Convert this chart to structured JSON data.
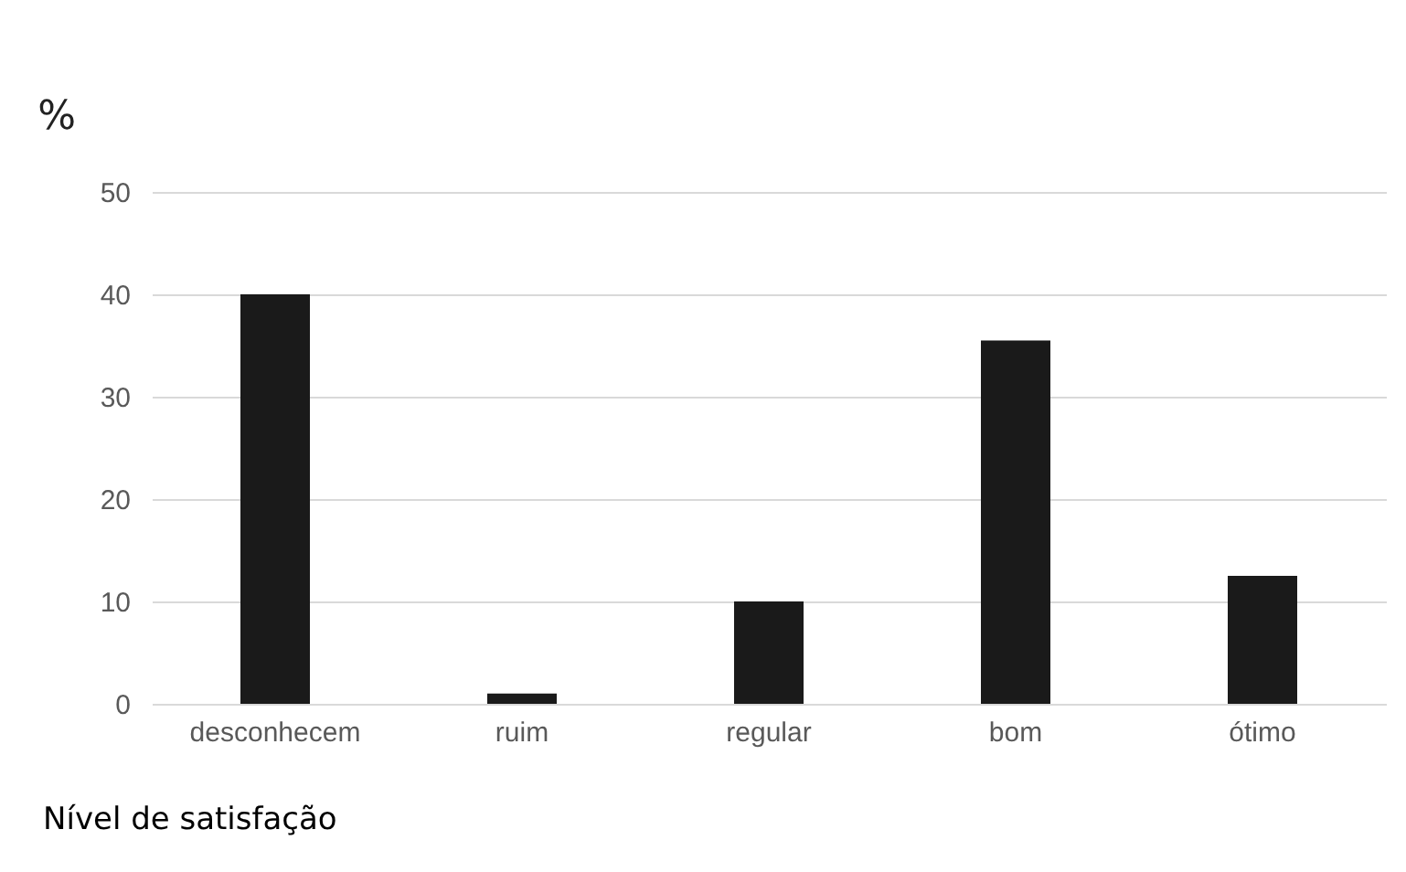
{
  "chart_data": {
    "type": "bar",
    "ylabel": "%",
    "xlabel": "Nível de satisfação",
    "categories": [
      "desconhecem",
      "ruim",
      "regular",
      "bom",
      "ótimo"
    ],
    "values": [
      40,
      1,
      10,
      35.5,
      12.5
    ],
    "color": "#1a1a1a",
    "ylim": [
      0,
      50
    ],
    "yticks": [
      0,
      10,
      20,
      30,
      40,
      50
    ],
    "grid": "y"
  }
}
